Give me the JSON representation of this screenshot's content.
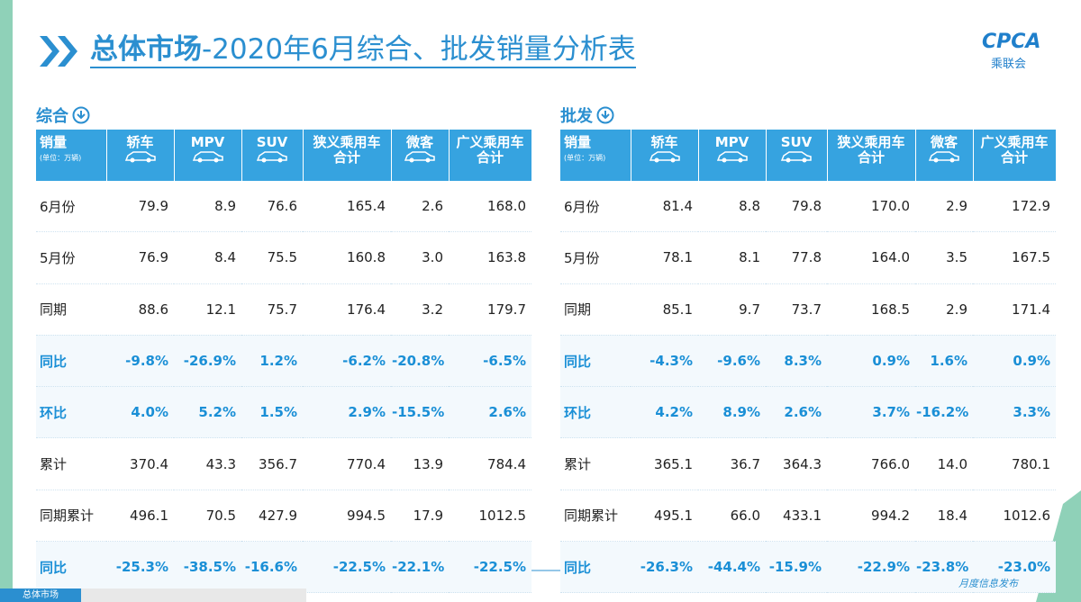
{
  "header": {
    "title_main": "总体市场",
    "title_rest": "-2020年6月综合、批发销量分析表",
    "logo": "CPCA",
    "logo_cn": "乘联会"
  },
  "tables": [
    {
      "title": "综合",
      "head": {
        "label": "销量",
        "unit": "(单位：万辆)",
        "columns": [
          [
            "轿车"
          ],
          [
            "MPV"
          ],
          [
            "SUV"
          ],
          [
            "狭义乘用车",
            "合计"
          ],
          [
            "微客"
          ],
          [
            "广义乘用车",
            "合计"
          ]
        ]
      },
      "rows": [
        {
          "label": "6月份",
          "cells": [
            "79.9",
            "8.9",
            "76.6",
            "165.4",
            "2.6",
            "168.0"
          ]
        },
        {
          "label": "5月份",
          "cells": [
            "76.9",
            "8.4",
            "75.5",
            "160.8",
            "3.0",
            "163.8"
          ]
        },
        {
          "label": "同期",
          "cells": [
            "88.6",
            "12.1",
            "75.7",
            "176.4",
            "3.2",
            "179.7"
          ]
        },
        {
          "label": "同比",
          "cells": [
            "-9.8%",
            "-26.9%",
            "1.2%",
            "-6.2%",
            "-20.8%",
            "-6.5%"
          ]
        },
        {
          "label": "环比",
          "cells": [
            "4.0%",
            "5.2%",
            "1.5%",
            "2.9%",
            "-15.5%",
            "2.6%"
          ]
        },
        {
          "label": "累计",
          "cells": [
            "370.4",
            "43.3",
            "356.7",
            "770.4",
            "13.9",
            "784.4"
          ]
        },
        {
          "label": "同期累计",
          "cells": [
            "496.1",
            "70.5",
            "427.9",
            "994.5",
            "17.9",
            "1012.5"
          ]
        },
        {
          "label": "同比",
          "cells": [
            "-25.3%",
            "-38.5%",
            "-16.6%",
            "-22.5%",
            "-22.1%",
            "-22.5%"
          ]
        }
      ]
    },
    {
      "title": "批发",
      "head": {
        "label": "销量",
        "unit": "(单位：万辆)",
        "columns": [
          [
            "轿车"
          ],
          [
            "MPV"
          ],
          [
            "SUV"
          ],
          [
            "狭义乘用车",
            "合计"
          ],
          [
            "微客"
          ],
          [
            "广义乘用车",
            "合计"
          ]
        ]
      },
      "rows": [
        {
          "label": "6月份",
          "cells": [
            "81.4",
            "8.8",
            "79.8",
            "170.0",
            "2.9",
            "172.9"
          ]
        },
        {
          "label": "5月份",
          "cells": [
            "78.1",
            "8.1",
            "77.8",
            "164.0",
            "3.5",
            "167.5"
          ]
        },
        {
          "label": "同期",
          "cells": [
            "85.1",
            "9.7",
            "73.7",
            "168.5",
            "2.9",
            "171.4"
          ]
        },
        {
          "label": "同比",
          "cells": [
            "-4.3%",
            "-9.6%",
            "8.3%",
            "0.9%",
            "1.6%",
            "0.9%"
          ]
        },
        {
          "label": "环比",
          "cells": [
            "4.2%",
            "8.9%",
            "2.6%",
            "3.7%",
            "-16.2%",
            "3.3%"
          ]
        },
        {
          "label": "累计",
          "cells": [
            "365.1",
            "36.7",
            "364.3",
            "766.0",
            "14.0",
            "780.1"
          ]
        },
        {
          "label": "同期累计",
          "cells": [
            "495.1",
            "66.0",
            "433.1",
            "994.2",
            "18.4",
            "1012.6"
          ]
        },
        {
          "label": "同比",
          "cells": [
            "-26.3%",
            "-44.4%",
            "-15.9%",
            "-22.9%",
            "-23.8%",
            "-23.0%"
          ]
        }
      ]
    }
  ],
  "footer": {
    "note": "月度信息发布",
    "tabs": [
      "总体市场"
    ]
  }
}
